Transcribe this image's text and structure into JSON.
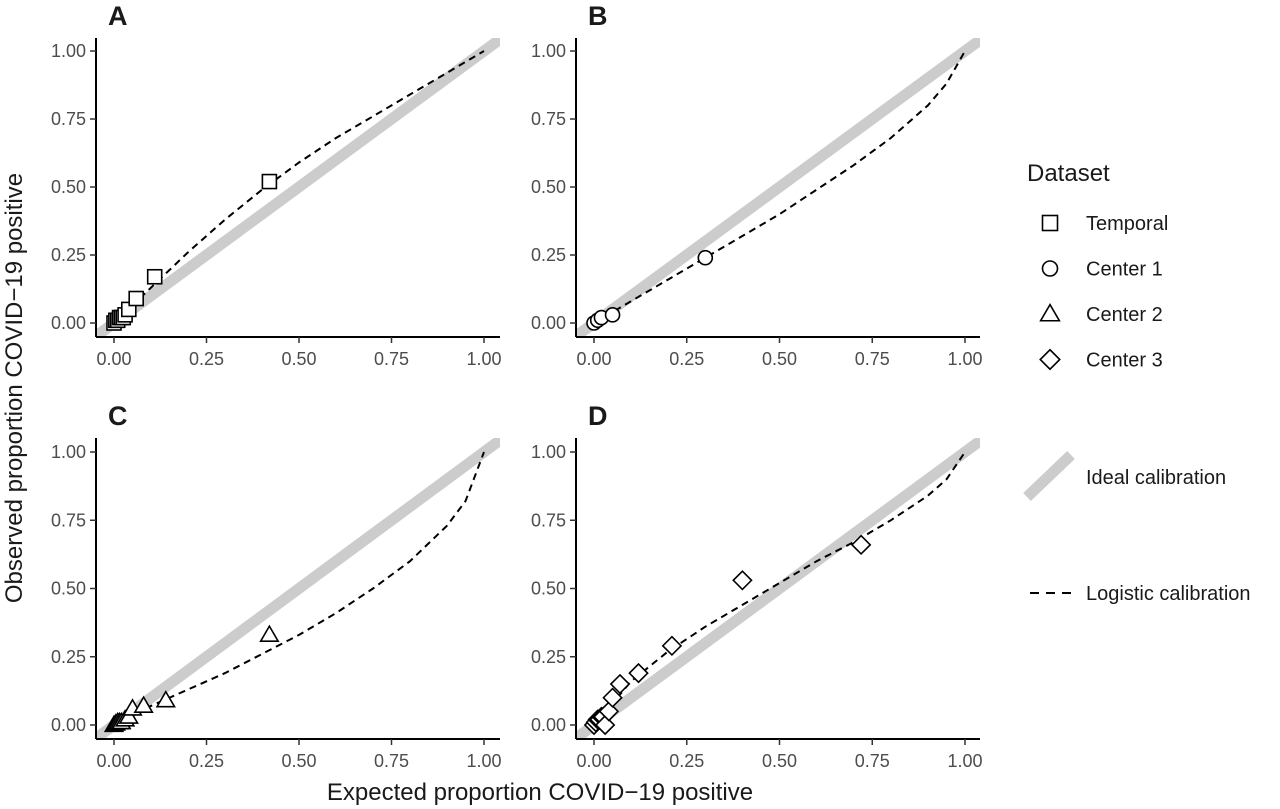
{
  "chart_data": [
    {
      "type": "scatter",
      "panel": "A",
      "xlim": [
        0,
        1
      ],
      "ylim": [
        0,
        1
      ],
      "x_ticks": [
        "0.00",
        "0.25",
        "0.50",
        "0.75",
        "1.00"
      ],
      "y_ticks": [
        "0.00",
        "0.25",
        "0.50",
        "0.75",
        "1.00"
      ],
      "series": [
        {
          "name": "Temporal",
          "marker": "square",
          "x": [
            0.0,
            0.005,
            0.01,
            0.015,
            0.02,
            0.025,
            0.03,
            0.04,
            0.06,
            0.11,
            0.42
          ],
          "y": [
            0.0,
            0.01,
            0.01,
            0.02,
            0.02,
            0.02,
            0.03,
            0.05,
            0.09,
            0.17,
            0.52
          ]
        }
      ],
      "logistic_calibration": {
        "x": [
          0.0,
          0.02,
          0.05,
          0.1,
          0.2,
          0.3,
          0.4,
          0.5,
          0.6,
          0.7,
          0.8,
          0.9,
          1.0
        ],
        "y": [
          0.0,
          0.025,
          0.065,
          0.13,
          0.26,
          0.38,
          0.49,
          0.59,
          0.68,
          0.76,
          0.84,
          0.92,
          1.0
        ]
      }
    },
    {
      "type": "scatter",
      "panel": "B",
      "xlim": [
        0,
        1
      ],
      "ylim": [
        0,
        1
      ],
      "x_ticks": [
        "0.00",
        "0.25",
        "0.50",
        "0.75",
        "1.00"
      ],
      "y_ticks": [
        "0.00",
        "0.25",
        "0.50",
        "0.75",
        "1.00"
      ],
      "series": [
        {
          "name": "Center 1",
          "marker": "circle",
          "x": [
            0.0,
            0.01,
            0.02,
            0.05,
            0.3
          ],
          "y": [
            0.0,
            0.01,
            0.02,
            0.03,
            0.24
          ]
        }
      ],
      "logistic_calibration": {
        "x": [
          0.0,
          0.05,
          0.1,
          0.2,
          0.3,
          0.4,
          0.5,
          0.6,
          0.7,
          0.8,
          0.9,
          0.95,
          1.0
        ],
        "y": [
          0.0,
          0.04,
          0.08,
          0.16,
          0.24,
          0.32,
          0.4,
          0.49,
          0.58,
          0.68,
          0.8,
          0.88,
          1.0
        ]
      }
    },
    {
      "type": "scatter",
      "panel": "C",
      "xlim": [
        0,
        1
      ],
      "ylim": [
        0,
        1
      ],
      "x_ticks": [
        "0.00",
        "0.25",
        "0.50",
        "0.75",
        "1.00"
      ],
      "y_ticks": [
        "0.00",
        "0.25",
        "0.50",
        "0.75",
        "1.00"
      ],
      "series": [
        {
          "name": "Center 2",
          "marker": "triangle",
          "x": [
            0.0,
            0.005,
            0.01,
            0.015,
            0.02,
            0.03,
            0.04,
            0.05,
            0.08,
            0.14,
            0.42
          ],
          "y": [
            0.0,
            0.005,
            0.01,
            0.01,
            0.01,
            0.02,
            0.03,
            0.06,
            0.07,
            0.09,
            0.33
          ]
        }
      ],
      "logistic_calibration": {
        "x": [
          0.0,
          0.05,
          0.1,
          0.2,
          0.3,
          0.4,
          0.5,
          0.6,
          0.7,
          0.8,
          0.9,
          0.95,
          1.0
        ],
        "y": [
          0.0,
          0.04,
          0.07,
          0.13,
          0.19,
          0.26,
          0.33,
          0.41,
          0.5,
          0.6,
          0.73,
          0.82,
          1.0
        ]
      }
    },
    {
      "type": "scatter",
      "panel": "D",
      "xlim": [
        0,
        1
      ],
      "ylim": [
        0,
        1
      ],
      "x_ticks": [
        "0.00",
        "0.25",
        "0.50",
        "0.75",
        "1.00"
      ],
      "y_ticks": [
        "0.00",
        "0.25",
        "0.50",
        "0.75",
        "1.00"
      ],
      "series": [
        {
          "name": "Center 3",
          "marker": "diamond",
          "x": [
            0.0,
            0.005,
            0.01,
            0.015,
            0.02,
            0.025,
            0.03,
            0.04,
            0.05,
            0.07,
            0.12,
            0.21,
            0.4,
            0.72
          ],
          "y": [
            0.0,
            0.01,
            0.02,
            0.02,
            0.03,
            0.03,
            0.0,
            0.05,
            0.1,
            0.15,
            0.19,
            0.29,
            0.53,
            0.66
          ]
        }
      ],
      "logistic_calibration": {
        "x": [
          0.0,
          0.05,
          0.1,
          0.2,
          0.3,
          0.4,
          0.5,
          0.6,
          0.7,
          0.8,
          0.9,
          0.95,
          1.0
        ],
        "y": [
          0.0,
          0.08,
          0.16,
          0.27,
          0.36,
          0.44,
          0.52,
          0.6,
          0.67,
          0.75,
          0.84,
          0.9,
          1.0
        ]
      }
    }
  ],
  "axes": {
    "xlabel": "Expected proportion COVID−19 positive",
    "ylabel": "Observed proportion COVID−19 positive"
  },
  "legend": {
    "title": "Dataset",
    "items": [
      {
        "label": "Temporal",
        "marker": "square"
      },
      {
        "label": "Center 1",
        "marker": "circle"
      },
      {
        "label": "Center 2",
        "marker": "triangle"
      },
      {
        "label": "Center 3",
        "marker": "diamond"
      }
    ],
    "ideal_label": "Ideal calibration",
    "logistic_label": "Logistic calibration"
  },
  "colors": {
    "ideal_line": "#cccccc",
    "marker_stroke": "#000000",
    "marker_fill": "#ffffff",
    "axis_text": "#4d4d4d"
  }
}
